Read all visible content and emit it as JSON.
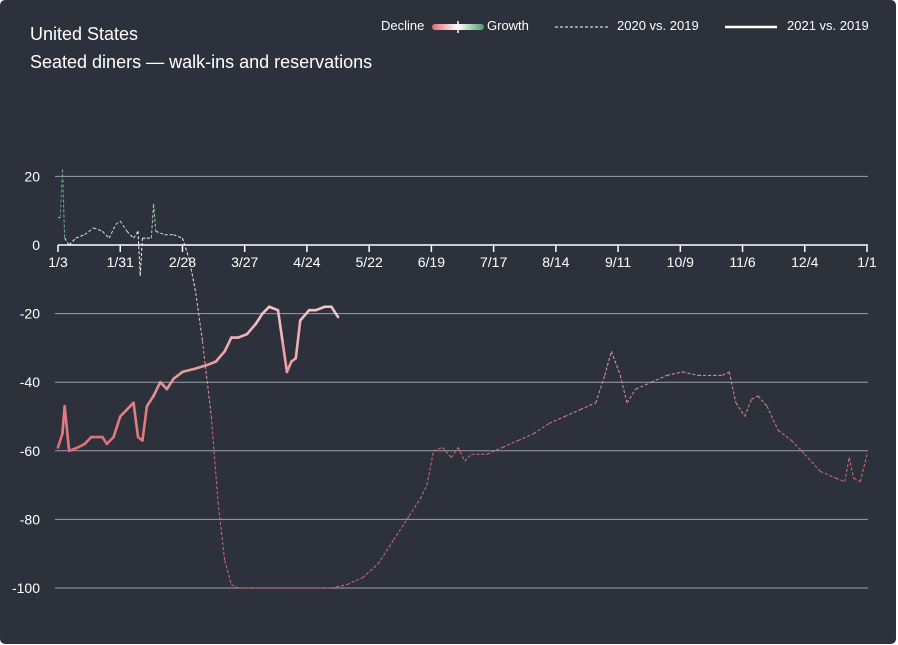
{
  "header": {
    "title": "United States",
    "subtitle": "Seated diners — walk-ins and reservations"
  },
  "legend": {
    "decline_label": "Decline",
    "growth_label": "Growth",
    "series_2020_label": "2020 vs. 2019",
    "series_2021_label": "2021 vs. 2019"
  },
  "colors": {
    "background": "#2d313c",
    "gridline": "#9aa0ab",
    "decline": "#e06a72",
    "growth": "#4e9d6a",
    "neutral": "#ffffff"
  },
  "chart_data": {
    "type": "line",
    "title": "Seated diners — walk-ins and reservations",
    "subtitle": "United States",
    "xlabel": "",
    "ylabel": "",
    "ylim": [
      -100,
      20
    ],
    "xlim": [
      "1/3",
      "1/1"
    ],
    "x_ticks": [
      "1/3",
      "1/31",
      "2/28",
      "3/27",
      "4/24",
      "5/22",
      "6/19",
      "7/17",
      "8/14",
      "9/11",
      "10/9",
      "11/6",
      "12/4",
      "1/1"
    ],
    "y_ticks": [
      20,
      0,
      -20,
      -40,
      -60,
      -80,
      -100
    ],
    "grid": true,
    "legend_position": "top-right",
    "color_scale": "diverging: decline (red) to growth (green)",
    "series": [
      {
        "name": "2020 vs. 2019",
        "style": "dashed",
        "points": [
          [
            "1/3",
            8
          ],
          [
            "1/4",
            8
          ],
          [
            "1/5",
            22
          ],
          [
            "1/6",
            2
          ],
          [
            "1/8",
            0
          ],
          [
            "1/11",
            2
          ],
          [
            "1/15",
            3
          ],
          [
            "1/19",
            5
          ],
          [
            "1/23",
            4
          ],
          [
            "1/26",
            2
          ],
          [
            "1/29",
            6
          ],
          [
            "1/31",
            7
          ],
          [
            "2/3",
            4
          ],
          [
            "2/6",
            2
          ],
          [
            "2/8",
            4
          ],
          [
            "2/9",
            -9
          ],
          [
            "2/10",
            2
          ],
          [
            "2/12",
            2
          ],
          [
            "2/14",
            2
          ],
          [
            "2/15",
            12
          ],
          [
            "2/16",
            4
          ],
          [
            "2/20",
            3
          ],
          [
            "2/24",
            3
          ],
          [
            "2/28",
            2
          ],
          [
            "3/2",
            -4
          ],
          [
            "3/5",
            -14
          ],
          [
            "3/8",
            -28
          ],
          [
            "3/12",
            -50
          ],
          [
            "3/15",
            -75
          ],
          [
            "3/18",
            -92
          ],
          [
            "3/21",
            -99
          ],
          [
            "3/24",
            -100
          ],
          [
            "4/7",
            -100
          ],
          [
            "4/21",
            -100
          ],
          [
            "5/5",
            -100
          ],
          [
            "5/12",
            -99
          ],
          [
            "5/19",
            -97
          ],
          [
            "5/26",
            -93
          ],
          [
            "6/2",
            -86
          ],
          [
            "6/9",
            -79
          ],
          [
            "6/14",
            -74
          ],
          [
            "6/17",
            -70
          ],
          [
            "6/20",
            -60
          ],
          [
            "6/24",
            -59
          ],
          [
            "6/28",
            -62
          ],
          [
            "7/1",
            -59
          ],
          [
            "7/4",
            -63
          ],
          [
            "7/7",
            -61
          ],
          [
            "7/14",
            -61
          ],
          [
            "7/21",
            -59
          ],
          [
            "7/28",
            -57
          ],
          [
            "8/4",
            -55
          ],
          [
            "8/11",
            -52
          ],
          [
            "8/18",
            -50
          ],
          [
            "8/25",
            -48
          ],
          [
            "9/1",
            -46
          ],
          [
            "9/5",
            -38
          ],
          [
            "9/8",
            -31
          ],
          [
            "9/12",
            -38
          ],
          [
            "9/15",
            -46
          ],
          [
            "9/19",
            -42
          ],
          [
            "9/26",
            -40
          ],
          [
            "10/3",
            -38
          ],
          [
            "10/10",
            -37
          ],
          [
            "10/17",
            -38
          ],
          [
            "10/24",
            -38
          ],
          [
            "10/28",
            -38
          ],
          [
            "10/31",
            -37
          ],
          [
            "11/3",
            -46
          ],
          [
            "11/7",
            -50
          ],
          [
            "11/10",
            -45
          ],
          [
            "11/13",
            -44
          ],
          [
            "11/17",
            -47
          ],
          [
            "11/22",
            -54
          ],
          [
            "11/28",
            -57
          ],
          [
            "12/4",
            -61
          ],
          [
            "12/11",
            -66
          ],
          [
            "12/18",
            -68
          ],
          [
            "12/22",
            -69
          ],
          [
            "12/24",
            -62
          ],
          [
            "12/26",
            -68
          ],
          [
            "12/29",
            -69
          ],
          [
            "1/1",
            -61
          ]
        ]
      },
      {
        "name": "2021 vs. 2019",
        "style": "solid",
        "points": [
          [
            "1/3",
            -59
          ],
          [
            "1/5",
            -55
          ],
          [
            "1/6",
            -47
          ],
          [
            "1/8",
            -60
          ],
          [
            "1/12",
            -59
          ],
          [
            "1/15",
            -58
          ],
          [
            "1/18",
            -56
          ],
          [
            "1/23",
            -56
          ],
          [
            "1/25",
            -58
          ],
          [
            "1/28",
            -56
          ],
          [
            "1/31",
            -50
          ],
          [
            "2/3",
            -48
          ],
          [
            "2/6",
            -46
          ],
          [
            "2/8",
            -56
          ],
          [
            "2/10",
            -57
          ],
          [
            "2/12",
            -47
          ],
          [
            "2/15",
            -44
          ],
          [
            "2/18",
            -40
          ],
          [
            "2/21",
            -42
          ],
          [
            "2/24",
            -39
          ],
          [
            "2/28",
            -37
          ],
          [
            "3/5",
            -36
          ],
          [
            "3/10",
            -35
          ],
          [
            "3/14",
            -34
          ],
          [
            "3/18",
            -31
          ],
          [
            "3/21",
            -27
          ],
          [
            "3/24",
            -27
          ],
          [
            "3/28",
            -26
          ],
          [
            "4/1",
            -23
          ],
          [
            "4/4",
            -20
          ],
          [
            "4/7",
            -18
          ],
          [
            "4/11",
            -19
          ],
          [
            "4/13",
            -28
          ],
          [
            "4/15",
            -37
          ],
          [
            "4/17",
            -34
          ],
          [
            "4/19",
            -33
          ],
          [
            "4/21",
            -22
          ],
          [
            "4/25",
            -19
          ],
          [
            "4/28",
            -19
          ],
          [
            "5/2",
            -18
          ],
          [
            "5/5",
            -18
          ],
          [
            "5/8",
            -21
          ]
        ]
      }
    ]
  }
}
